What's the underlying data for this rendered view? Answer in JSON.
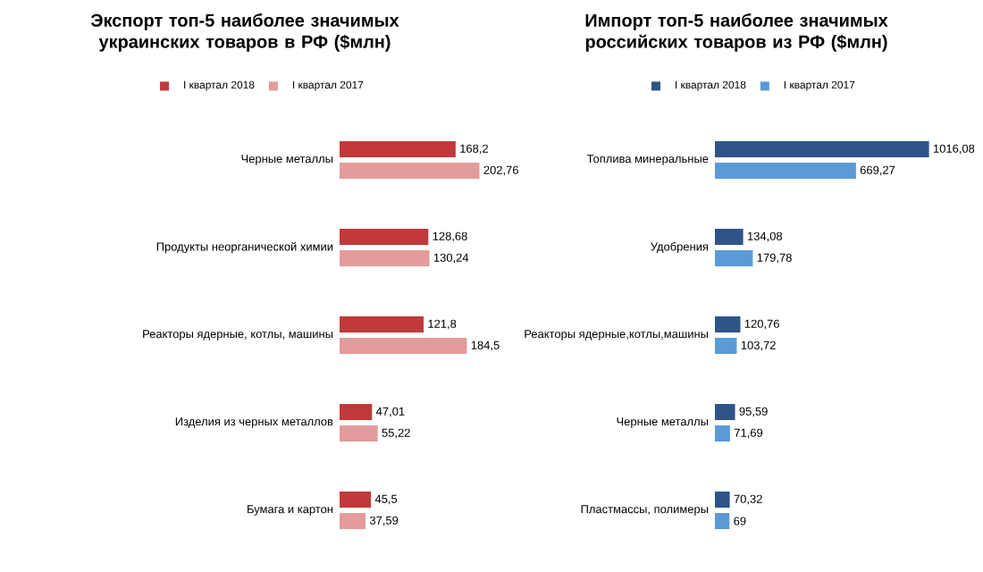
{
  "chart_data": [
    {
      "type": "bar",
      "orientation": "horizontal",
      "title": "Экспорт топ-5 наиболее значимых украинских товаров в РФ ($млн)",
      "categories": [
        "Черные металлы",
        "Продукты неорганической химии",
        "Реакторы ядерные, котлы, машины",
        "Изделия из черных металлов",
        "Бумага и картон"
      ],
      "tick_labels": "y",
      "legend": "top",
      "series": [
        {
          "name": "I квартал 2018",
          "color": "#c0393b",
          "values": [
            168.2,
            128.68,
            121.8,
            47.01,
            45.5
          ],
          "value_labels": [
            "168,2",
            "128,68",
            "121,8",
            "47,01",
            "45,5"
          ]
        },
        {
          "name": "I квартал 2017",
          "color": "#e39b9b",
          "values": [
            202.76,
            130.24,
            184.5,
            55.22,
            37.59
          ],
          "value_labels": [
            "202,76",
            "130,24",
            "184,5",
            "55,22",
            "37,59"
          ]
        }
      ]
    },
    {
      "type": "bar",
      "orientation": "horizontal",
      "title": "Импорт топ-5 наиболее значимых российских товаров из РФ ($млн)",
      "categories": [
        "Топлива минеральные",
        "Удобрения",
        "Реакторы ядерные,котлы,машины",
        "Черные металлы",
        "Пластмассы, полимеры"
      ],
      "tick_labels": "y",
      "legend": "top",
      "series": [
        {
          "name": "I квартал 2018",
          "color": "#2f5488",
          "values": [
            1016.08,
            134.08,
            120.76,
            95.59,
            70.32
          ],
          "value_labels": [
            "1016,08",
            "134,08",
            "120,76",
            "95,59",
            "70,32"
          ]
        },
        {
          "name": "I квартал 2017",
          "color": "#5b9bd5",
          "values": [
            669.27,
            179.78,
            103.72,
            71.69,
            69
          ],
          "value_labels": [
            "669,27",
            "179,78",
            "103,72",
            "71,69",
            "69"
          ]
        }
      ]
    }
  ]
}
